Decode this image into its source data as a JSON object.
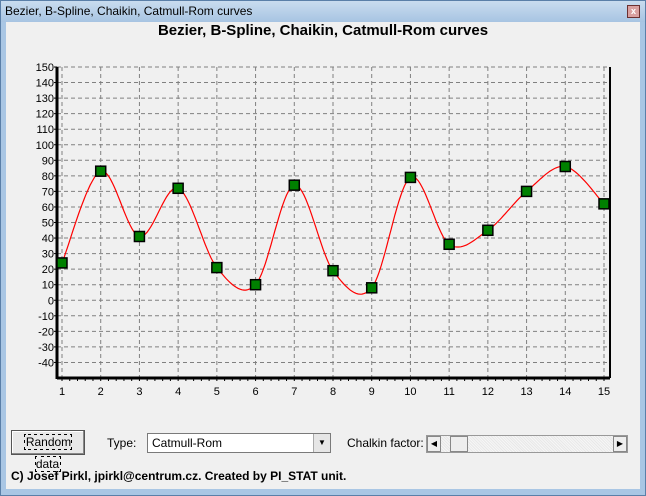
{
  "window": {
    "title": "Bezier, B-Spline, Chaikin, Catmull-Rom curves",
    "close_icon": "close-icon"
  },
  "controls": {
    "random_button": "Random data",
    "type_label": "Type:",
    "type_value": "Catmull-Rom",
    "chaikin_label": "Chalkin factor:",
    "chaikin_slider_value": 0.05
  },
  "footer": "C) Josef Pirkl, jpirkl@centrum.cz. Created by PI_STAT unit.",
  "chart_data": {
    "type": "line",
    "title": "Bezier, B-Spline, Chaikin, Catmull-Rom curves",
    "x": [
      1,
      2,
      3,
      4,
      5,
      6,
      7,
      8,
      9,
      10,
      11,
      12,
      13,
      14,
      15
    ],
    "values": [
      24,
      83,
      41,
      72,
      21,
      10,
      74,
      19,
      8,
      79,
      36,
      45,
      70,
      86,
      62
    ],
    "xlim": [
      1,
      15
    ],
    "ylim": [
      -50,
      150
    ],
    "yticks": [
      150,
      140,
      130,
      120,
      110,
      100,
      90,
      80,
      70,
      60,
      50,
      40,
      30,
      20,
      10,
      0,
      -10,
      -20,
      -30,
      -40
    ],
    "xticks": [
      1,
      2,
      3,
      4,
      5,
      6,
      7,
      8,
      9,
      10,
      11,
      12,
      13,
      14,
      15
    ],
    "grid": true,
    "colors": {
      "curve": "#ff0000",
      "marker": "#008000",
      "marker_edge": "#000000"
    }
  }
}
